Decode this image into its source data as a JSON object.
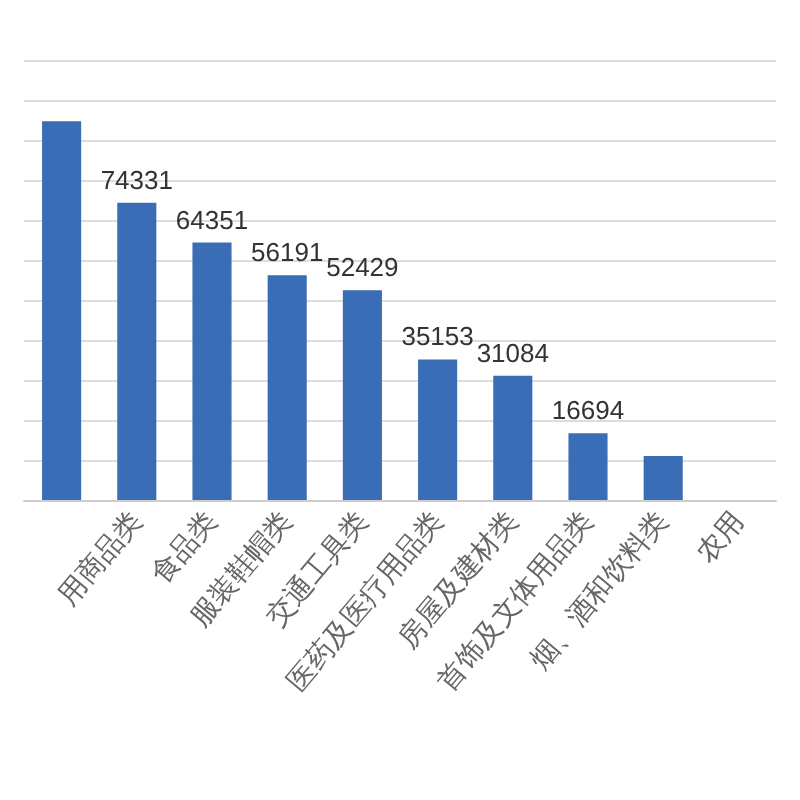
{
  "chart_data": {
    "type": "bar",
    "categories": [
      null,
      "用商品类",
      "食品类",
      "服装鞋帽类",
      "交通工具类",
      "医药及医疗用品类",
      "房屋及建材类",
      "首饰及文体用品类",
      "烟、酒和饮料类",
      "农用"
    ],
    "values": [
      94700,
      74331,
      64351,
      56191,
      52429,
      35153,
      31084,
      16694,
      11000,
      null
    ],
    "value_labels": [
      null,
      "74331",
      "64351",
      "56191",
      "52429",
      "35153",
      "31084",
      "16694",
      null,
      null
    ],
    "color": "#3a6db5",
    "ylim": [
      0,
      110000
    ],
    "yticks": [
      {
        "value": 0,
        "label": null
      },
      {
        "value": 10000,
        "label": null
      },
      {
        "value": 20000,
        "label": null
      },
      {
        "value": 30000,
        "label": null
      },
      {
        "value": 40000,
        "label": null
      },
      {
        "value": 50000,
        "label": null
      },
      {
        "value": 60000,
        "label": null
      },
      {
        "value": 70000,
        "label": null
      },
      {
        "value": 80000,
        "label": null
      },
      {
        "value": 90000,
        "label": null
      },
      {
        "value": 100000,
        "label": null
      },
      {
        "value": 110000,
        "label": null
      }
    ],
    "grid": "y",
    "tick_labels": "x"
  }
}
